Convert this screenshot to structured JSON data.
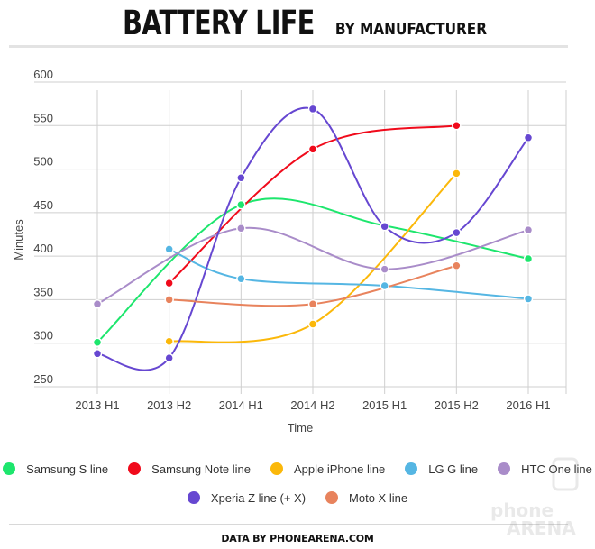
{
  "title": {
    "main": "BATTERY LIFE",
    "sub": "BY MANUFACTURER"
  },
  "footer": {
    "credit": "DATA BY PHONEARENA.COM"
  },
  "watermark": {
    "line1": "phone",
    "line2": "ARENA"
  },
  "chart_data": {
    "type": "line",
    "xlabel": "Time",
    "ylabel": "Minutes",
    "ylim": [
      250,
      600
    ],
    "yticks": [
      250,
      300,
      350,
      400,
      450,
      500,
      550,
      600
    ],
    "categories": [
      "2013 H1",
      "2013 H2",
      "2014 H1",
      "2014 H2",
      "2015 H1",
      "2015 H2",
      "2016 H1"
    ],
    "grid": true,
    "legend_position": "bottom",
    "series": [
      {
        "name": "Samsung S line",
        "color": "#1de66d",
        "values": [
          301,
          null,
          459,
          null,
          435,
          null,
          397
        ]
      },
      {
        "name": "Samsung Note line",
        "color": "#f00a1b",
        "values": [
          null,
          369,
          null,
          523,
          null,
          550,
          null
        ]
      },
      {
        "name": "Apple iPhone line",
        "color": "#fbb80a",
        "values": [
          null,
          302,
          null,
          322,
          null,
          495,
          null
        ]
      },
      {
        "name": "LG G line",
        "color": "#55b6e3",
        "values": [
          null,
          408,
          374,
          null,
          366,
          null,
          351
        ]
      },
      {
        "name": "HTC One line",
        "color": "#a98cc9",
        "values": [
          345,
          null,
          432,
          null,
          385,
          null,
          430
        ]
      },
      {
        "name": "Xperia Z line (+ X)",
        "color": "#6647d1",
        "values": [
          288,
          283,
          490,
          569,
          434,
          427,
          536
        ]
      },
      {
        "name": "Moto X line",
        "color": "#e8835d",
        "values": [
          null,
          350,
          null,
          345,
          null,
          389,
          null
        ]
      }
    ]
  }
}
